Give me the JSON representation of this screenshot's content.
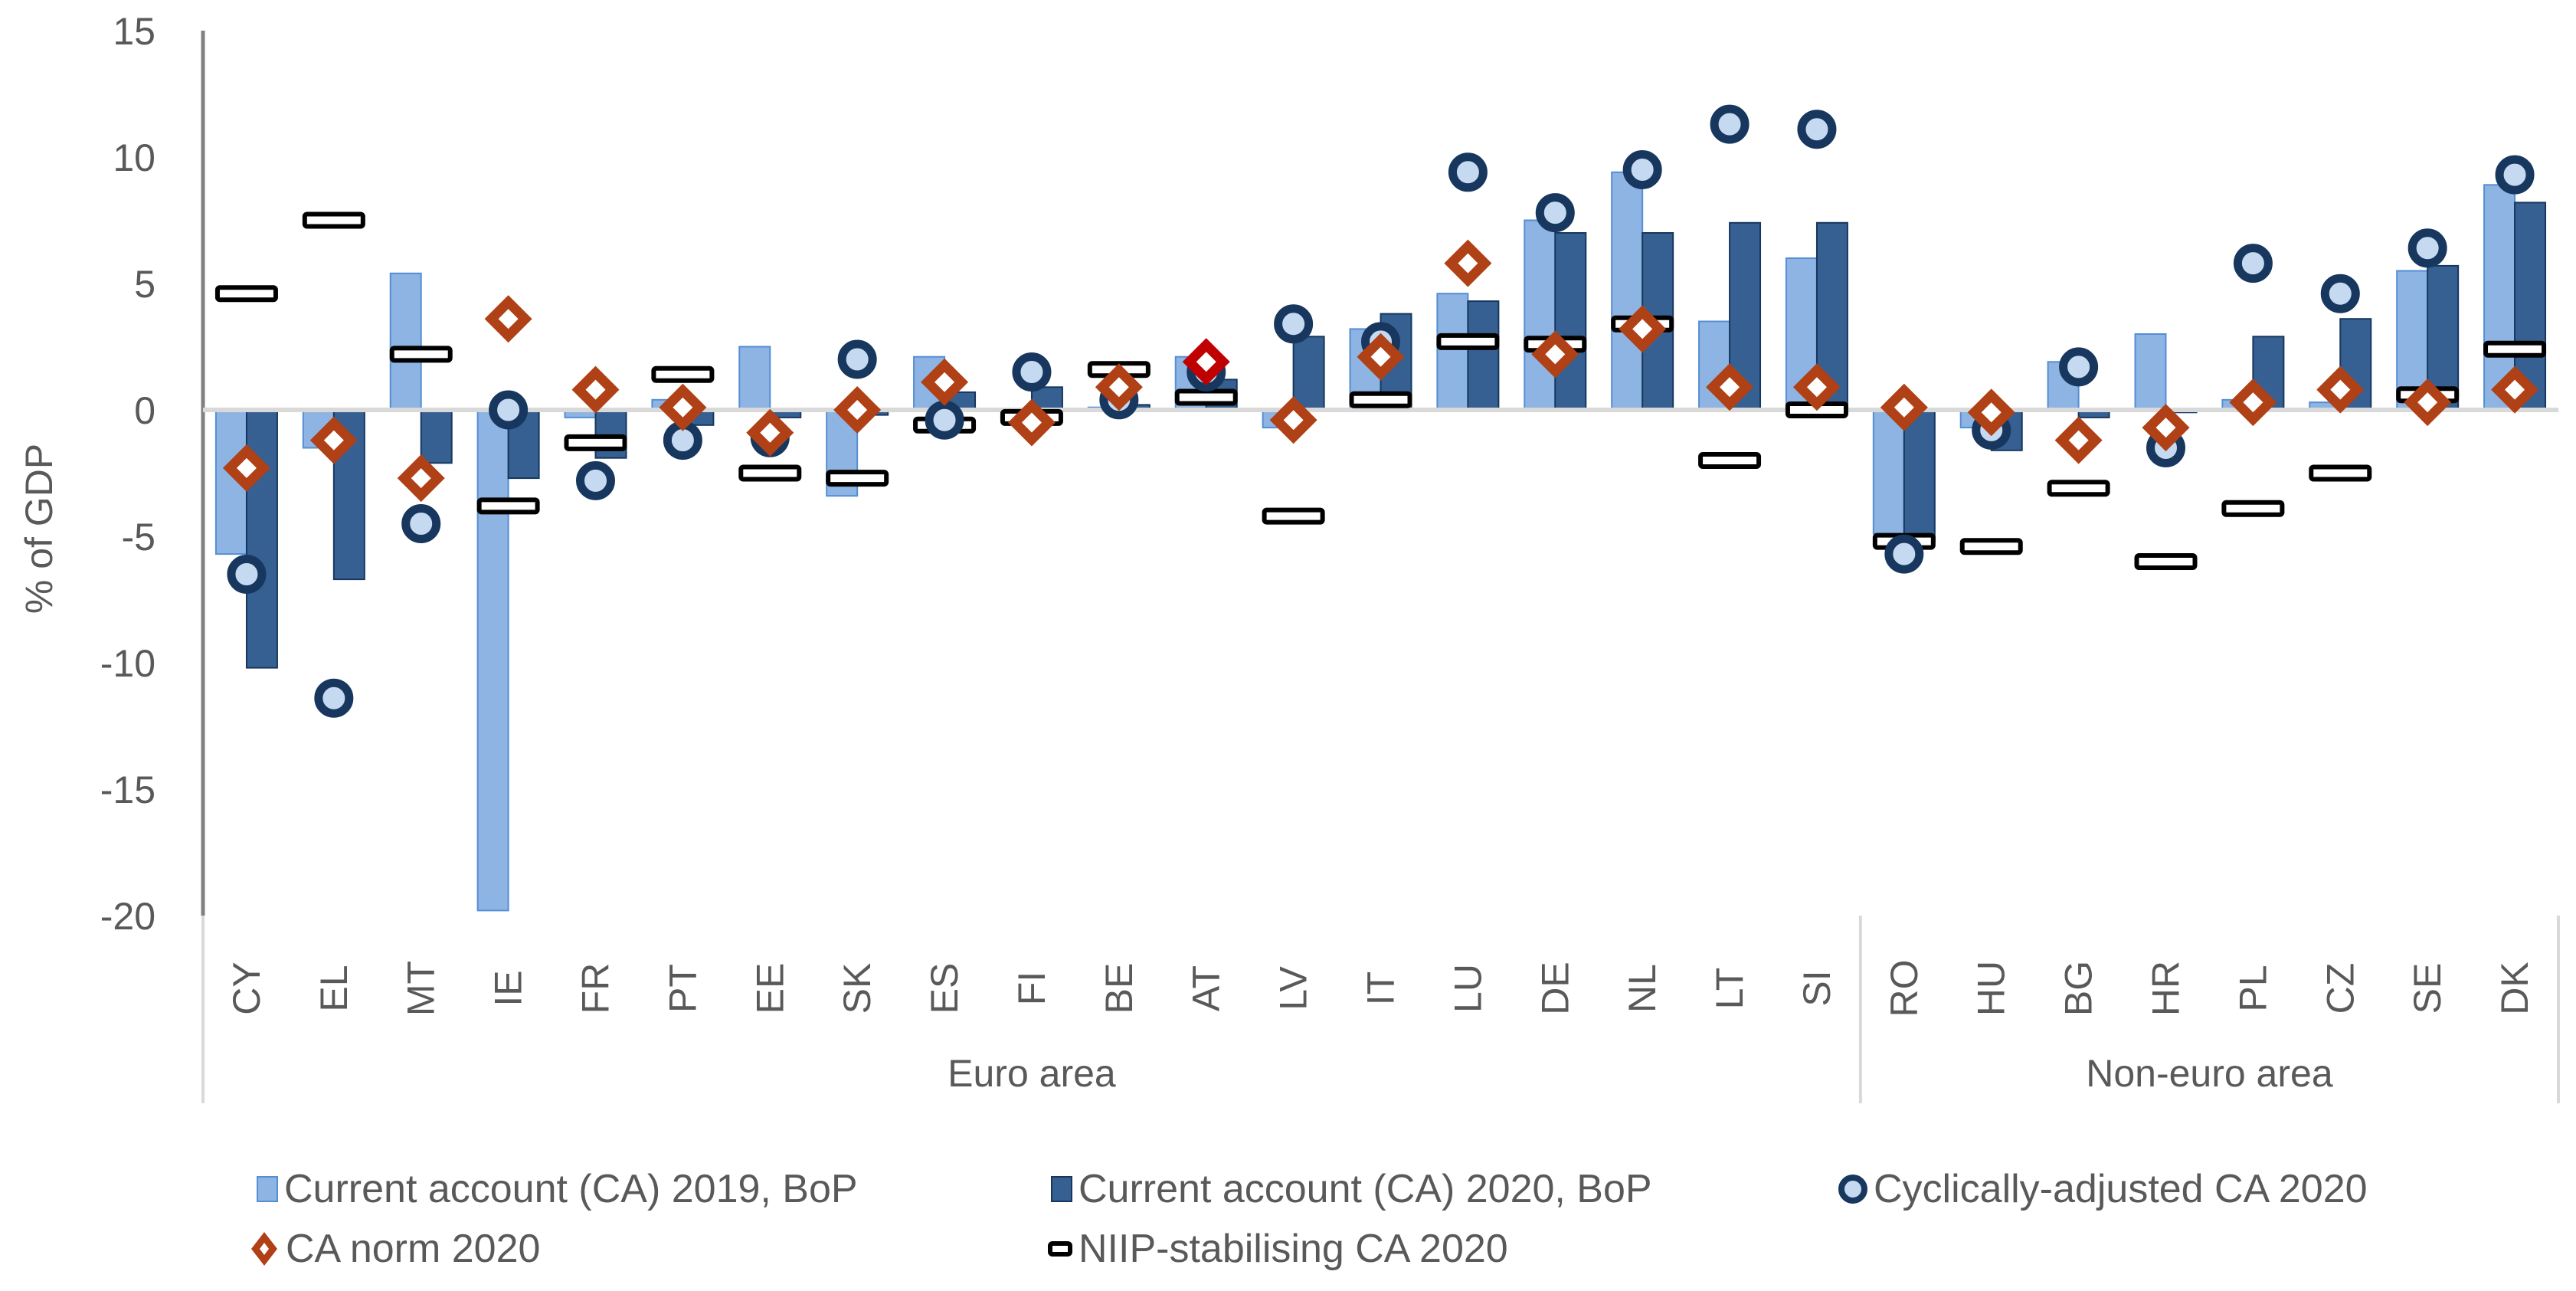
{
  "chart_data": {
    "type": "bar",
    "title": "",
    "xlabel": "",
    "ylabel": "% of GDP",
    "ylim": [
      -20,
      15
    ],
    "yticks": [
      15,
      10,
      5,
      0,
      -5,
      -10,
      -15,
      -20
    ],
    "grid": false,
    "legend_position": "bottom",
    "categories": [
      "CY",
      "EL",
      "MT",
      "IE",
      "FR",
      "PT",
      "EE",
      "SK",
      "ES",
      "FI",
      "BE",
      "AT",
      "LV",
      "IT",
      "LU",
      "DE",
      "NL",
      "LT",
      "SI",
      "RO",
      "HU",
      "BG",
      "HR",
      "PL",
      "CZ",
      "SE",
      "DK"
    ],
    "groups": [
      {
        "label": "Euro area",
        "categories": [
          "CY",
          "EL",
          "MT",
          "IE",
          "FR",
          "PT",
          "EE",
          "SK",
          "ES",
          "FI",
          "BE",
          "AT",
          "LV",
          "IT",
          "LU",
          "DE",
          "NL",
          "LT",
          "SI"
        ]
      },
      {
        "label": "Non-euro area",
        "categories": [
          "RO",
          "HU",
          "BG",
          "HR",
          "PL",
          "CZ",
          "SE",
          "DK"
        ]
      }
    ],
    "series": [
      {
        "name": "Current account (CA) 2019, BoP",
        "kind": "bar",
        "color": "#8DB4E2",
        "values": [
          -5.7,
          -1.5,
          5.4,
          -19.8,
          -0.3,
          0.4,
          2.5,
          -3.4,
          2.1,
          -0.4,
          0.1,
          2.1,
          -0.7,
          3.2,
          4.6,
          7.5,
          9.4,
          3.5,
          6.0,
          -4.9,
          -0.7,
          1.9,
          3.0,
          0.4,
          0.3,
          5.5,
          8.9
        ]
      },
      {
        "name": "Current account (CA) 2020, BoP",
        "kind": "bar",
        "color": "#366092",
        "values": [
          -10.2,
          -6.7,
          -2.1,
          -2.7,
          -1.9,
          -0.6,
          -0.3,
          -0.2,
          0.7,
          0.9,
          0.2,
          1.2,
          2.9,
          3.8,
          4.3,
          7.0,
          7.0,
          7.4,
          7.4,
          -5.2,
          -1.6,
          -0.3,
          -0.1,
          2.9,
          3.6,
          5.7,
          8.2
        ]
      },
      {
        "name": "Cyclically-adjusted CA 2020",
        "kind": "circle",
        "color": "#17375E",
        "fill": "#C5D9F1",
        "values": [
          -6.5,
          -11.4,
          -4.5,
          0.0,
          -2.8,
          -1.2,
          -1.1,
          2.0,
          -0.4,
          1.5,
          0.4,
          1.5,
          3.4,
          2.7,
          9.4,
          7.8,
          9.5,
          11.3,
          11.1,
          -5.7,
          -0.8,
          1.7,
          -1.5,
          5.8,
          4.6,
          6.4,
          9.3
        ]
      },
      {
        "name": "CA norm 2020",
        "kind": "diamond",
        "color": "#B04015",
        "highlight_color": "#C00000",
        "highlight_category": "AT",
        "values": [
          -2.3,
          -1.2,
          -2.7,
          3.6,
          0.8,
          0.1,
          -0.9,
          0.0,
          1.1,
          -0.5,
          0.9,
          1.9,
          -0.4,
          2.1,
          5.8,
          2.2,
          3.2,
          0.9,
          0.9,
          0.1,
          -0.1,
          -1.2,
          -0.7,
          0.3,
          0.8,
          0.3,
          0.8
        ]
      },
      {
        "name": "NIIP-stabilising CA 2020",
        "kind": "dash",
        "color": "#000000",
        "values": [
          4.6,
          7.5,
          2.2,
          -3.8,
          -1.3,
          1.4,
          -2.5,
          -2.7,
          -0.6,
          -0.3,
          1.6,
          0.5,
          -4.2,
          0.4,
          2.7,
          2.6,
          3.4,
          -2.0,
          0.0,
          -5.2,
          -5.4,
          -3.1,
          -6.0,
          -3.9,
          -2.5,
          0.6,
          2.4
        ]
      }
    ]
  },
  "legend": [
    {
      "label": "Current account (CA) 2019, BoP",
      "icon": "light-blue-square-icon"
    },
    {
      "label": "Current account (CA) 2020, BoP",
      "icon": "dark-blue-square-icon"
    },
    {
      "label": "Cyclically-adjusted CA 2020",
      "icon": "ring-marker-icon"
    },
    {
      "label": "CA norm 2020",
      "icon": "diamond-marker-icon"
    },
    {
      "label": "NIIP-stabilising CA 2020",
      "icon": "dash-marker-icon"
    }
  ]
}
